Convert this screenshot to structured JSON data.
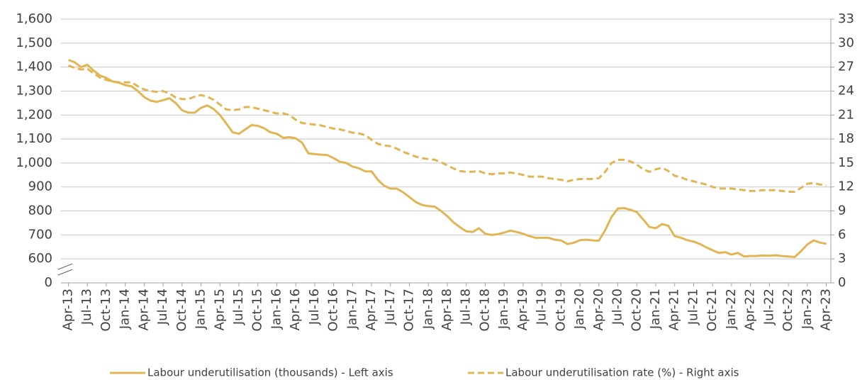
{
  "chart_data": {
    "type": "line",
    "categories": [
      "Apr-13",
      null,
      null,
      "Jul-13",
      null,
      null,
      "Oct-13",
      null,
      null,
      "Jan-14",
      null,
      null,
      "Apr-14",
      null,
      null,
      "Jul-14",
      null,
      null,
      "Oct-14",
      null,
      null,
      "Jan-15",
      null,
      null,
      "Apr-15",
      null,
      null,
      "Jul-15",
      null,
      null,
      "Oct-15",
      null,
      null,
      "Jan-16",
      null,
      null,
      "Apr-16",
      null,
      null,
      "Jul-16",
      null,
      null,
      "Oct-16",
      null,
      null,
      "Jan-17",
      null,
      null,
      "Apr-17",
      null,
      null,
      "Jul-17",
      null,
      null,
      "Oct-17",
      null,
      null,
      "Jan-18",
      null,
      null,
      "Apr-18",
      null,
      null,
      "Jul-18",
      null,
      null,
      "Oct-18",
      null,
      null,
      "Jan-19",
      null,
      null,
      "Apr-19",
      null,
      null,
      "Jul-19",
      null,
      null,
      "Oct-19",
      null,
      null,
      "Jan-20",
      null,
      null,
      "Apr-20",
      null,
      null,
      "Jul-20",
      null,
      null,
      "Oct-20",
      null,
      null,
      "Jan-21",
      null,
      null,
      "Apr-21",
      null,
      null,
      "Jul-21",
      null,
      null,
      "Oct-21",
      null,
      null,
      "Jan-22",
      null,
      null,
      "Apr-22",
      null,
      null,
      "Jul-22",
      null,
      null,
      "Oct-22",
      null,
      null,
      "Jan-23",
      null,
      null,
      "Apr-23"
    ],
    "series": [
      {
        "name": "Labour underutilisation (thousands) - Left axis",
        "color": "#e2b554",
        "dash": false,
        "values": [
          1430,
          1420,
          1400,
          1410,
          1385,
          1365,
          1355,
          1340,
          1335,
          1325,
          1320,
          1300,
          1275,
          1260,
          1255,
          1262,
          1270,
          1250,
          1220,
          1210,
          1210,
          1230,
          1240,
          1225,
          1200,
          1165,
          1128,
          1122,
          1140,
          1158,
          1155,
          1145,
          1128,
          1122,
          1105,
          1108,
          1103,
          1085,
          1040,
          1037,
          1035,
          1033,
          1020,
          1005,
          1000,
          985,
          978,
          965,
          965,
          930,
          905,
          893,
          893,
          878,
          858,
          837,
          825,
          820,
          818,
          800,
          778,
          752,
          732,
          715,
          712,
          728,
          705,
          700,
          703,
          710,
          718,
          712,
          705,
          695,
          688,
          688,
          688,
          680,
          677,
          662,
          667,
          678,
          680,
          677,
          676,
          720,
          775,
          810,
          812,
          805,
          795,
          765,
          733,
          728,
          745,
          738,
          695,
          688,
          678,
          672,
          662,
          648,
          636,
          625,
          628,
          618,
          625,
          610,
          612,
          612,
          614,
          613,
          615,
          612,
          610,
          608,
          632,
          660,
          677,
          668,
          663
        ]
      },
      {
        "name": "Labour underutilisation rate (%) - Right axis",
        "color": "#e2b554",
        "dash": true,
        "axis": "y2",
        "values": [
          27.2,
          26.9,
          26.7,
          26.8,
          26.2,
          25.7,
          25.4,
          25.2,
          25.1,
          25.1,
          25.1,
          24.6,
          24.2,
          24.0,
          23.9,
          24.0,
          23.7,
          23.2,
          23.0,
          23.0,
          23.3,
          23.5,
          23.3,
          22.9,
          22.3,
          21.7,
          21.6,
          21.7,
          22.0,
          22.0,
          21.8,
          21.6,
          21.4,
          21.2,
          21.2,
          21.0,
          20.4,
          20.0,
          19.9,
          19.8,
          19.7,
          19.5,
          19.3,
          19.2,
          19.0,
          18.8,
          18.7,
          18.5,
          17.9,
          17.4,
          17.2,
          17.1,
          16.8,
          16.4,
          16.1,
          15.8,
          15.6,
          15.5,
          15.4,
          15.1,
          14.7,
          14.3,
          14.0,
          13.9,
          13.9,
          14.0,
          13.7,
          13.6,
          13.7,
          13.7,
          13.8,
          13.7,
          13.5,
          13.3,
          13.3,
          13.3,
          13.1,
          13.0,
          12.9,
          12.7,
          12.9,
          13.0,
          13.0,
          13.0,
          13.1,
          13.9,
          15.0,
          15.4,
          15.4,
          15.2,
          14.8,
          14.2,
          13.9,
          14.2,
          14.4,
          14.0,
          13.4,
          13.2,
          12.9,
          12.7,
          12.5,
          12.3,
          12.0,
          11.8,
          11.8,
          11.8,
          11.7,
          11.6,
          11.5,
          11.5,
          11.6,
          11.6,
          11.6,
          11.5,
          11.4,
          11.4,
          11.9,
          12.4,
          12.5,
          12.3,
          12.2
        ]
      }
    ],
    "ylim": [
      500,
      1600
    ],
    "yticks": [
      {
        "value": 500,
        "label": "0"
      },
      600,
      700,
      800,
      900,
      {
        "value": 1000,
        "label": "1,000"
      },
      {
        "value": 1100,
        "label": "1,100"
      },
      {
        "value": 1200,
        "label": "1,200"
      },
      {
        "value": 1300,
        "label": "1,300"
      },
      {
        "value": 1400,
        "label": "1,400"
      },
      {
        "value": 1500,
        "label": "1,500"
      },
      {
        "value": 1600,
        "label": "1,600"
      }
    ],
    "axis_break": true,
    "y2lim": [
      0,
      33
    ],
    "y2ticks": [
      0,
      3,
      6,
      9,
      12,
      15,
      18,
      21,
      24,
      27,
      30,
      33
    ],
    "grid": true
  }
}
